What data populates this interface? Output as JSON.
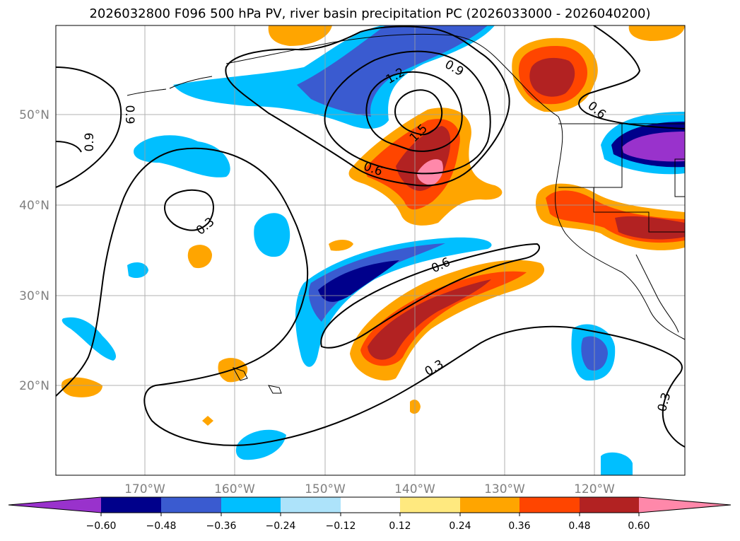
{
  "title": "2026032800 F096 500 hPa PV, river basin precipitation PC (2026033000 - 2026040200)",
  "map": {
    "lat_labels": [
      "50°N",
      "40°N",
      "30°N",
      "20°N"
    ],
    "lon_labels": [
      "170°W",
      "160°W",
      "150°W",
      "140°W",
      "130°W",
      "120°W"
    ],
    "contour_labels": [
      "1.2",
      "0.9",
      "1.5",
      "0.6",
      "0.9",
      "0.9",
      "0.3",
      "0.6",
      "0.3",
      "0.6",
      "0.3"
    ],
    "label_color": "#808080"
  },
  "colorbar": {
    "tick_labels": [
      "−0.60",
      "−0.48",
      "−0.36",
      "−0.24",
      "−0.12",
      "0.12",
      "0.24",
      "0.36",
      "0.48",
      "0.60"
    ],
    "colors": [
      "#9932CC",
      "#00008B",
      "#3A5BD0",
      "#00BFFF",
      "#ADE3FA",
      "#FFFFFF",
      "#FFE97F",
      "#FFA500",
      "#FF4500",
      "#B22222",
      "#FF88AA"
    ]
  }
}
